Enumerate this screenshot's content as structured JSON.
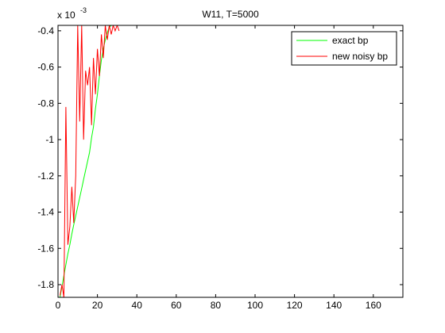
{
  "chart_data": {
    "type": "line",
    "title": "W11, T=5000",
    "xlabel": "",
    "ylabel": "",
    "y_exponent_label": "x 10",
    "y_exponent_power": "-3",
    "xlim": [
      0,
      175
    ],
    "ylim": [
      -1.87,
      -0.37
    ],
    "x_ticks": [
      0,
      20,
      40,
      60,
      80,
      100,
      120,
      140,
      160
    ],
    "x_tick_labels": [
      "0",
      "20",
      "40",
      "60",
      "80",
      "100",
      "120",
      "140",
      "160"
    ],
    "y_ticks": [
      -1.8,
      -1.6,
      -1.4,
      -1.2,
      -1.0,
      -0.8,
      -0.6,
      -0.4
    ],
    "y_tick_labels": [
      "-1.8",
      "-1.6",
      "-1.4",
      "-1.2",
      "-1",
      "-0.8",
      "-0.6",
      "-0.4"
    ],
    "grid": false,
    "legend_position": "top-right",
    "series": [
      {
        "name": "exact bp",
        "color": "#00ff00",
        "x": [
          1,
          2,
          3,
          4,
          5,
          6,
          7,
          8,
          9,
          10,
          11,
          12,
          13,
          14,
          15,
          16,
          17,
          18,
          19,
          20,
          21,
          22,
          23,
          24,
          25,
          26,
          27
        ],
        "y": [
          -1.87,
          -1.81,
          -1.75,
          -1.69,
          -1.63,
          -1.58,
          -1.52,
          -1.47,
          -1.42,
          -1.37,
          -1.32,
          -1.27,
          -1.22,
          -1.17,
          -1.12,
          -1.07,
          -0.99,
          -0.93,
          -0.83,
          -0.75,
          -0.65,
          -0.56,
          -0.5,
          -0.45,
          -0.41,
          -0.38,
          -0.37
        ]
      },
      {
        "name": "new noisy bp",
        "color": "#ff0000",
        "x": [
          1,
          2,
          3,
          4,
          5,
          6,
          7,
          8,
          9,
          10,
          11,
          12,
          13,
          14,
          15,
          16,
          17,
          18,
          19,
          20,
          21,
          22,
          23,
          24,
          25,
          26,
          27,
          28,
          29,
          30,
          31
        ],
        "y": [
          -1.86,
          -1.8,
          -1.87,
          -0.82,
          -1.58,
          -1.48,
          -1.26,
          -1.46,
          -1.2,
          -0.37,
          -0.9,
          -0.37,
          -1.0,
          -0.62,
          -0.7,
          -0.6,
          -0.92,
          -0.55,
          -0.75,
          -0.5,
          -0.65,
          -0.42,
          -0.55,
          -0.37,
          -0.45,
          -0.37,
          -0.42,
          -0.37,
          -0.4,
          -0.37,
          -0.4
        ]
      }
    ]
  }
}
